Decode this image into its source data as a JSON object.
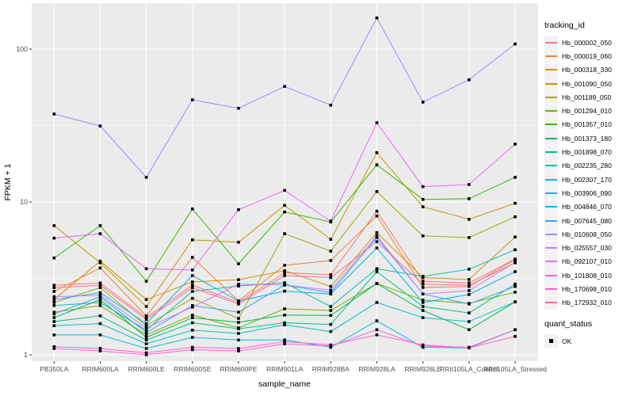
{
  "chart_data": {
    "type": "line",
    "title": "",
    "xlabel": "sample_name",
    "ylabel": "FPKM + 1",
    "y_scale": "log10",
    "ylim": [
      0.91,
      195
    ],
    "yticks": [
      1,
      10,
      100
    ],
    "ytick_labels": [
      "1",
      "10",
      "100"
    ],
    "minor_gridlines": [
      3.162,
      31.62
    ],
    "grid": "on",
    "panel_bg": "#ebebeb",
    "grid_color": "#ffffff",
    "tick_label_color": "#4d4d4d",
    "marker": "black-square",
    "legend_position": "right",
    "legend_title": "tracking_id",
    "legend2_title": "quant_status",
    "legend2_items": [
      "OK"
    ],
    "categories": [
      "PB350LA",
      "RRIM600LA",
      "RRIM600LE",
      "RRIM600SE",
      "RRIM600PE",
      "RRIM901LA",
      "RRIM928BA",
      "RRIM928LA",
      "RRIM928LE",
      "RRII105LA_Control",
      "RRII105LA_Stressed"
    ],
    "series": [
      {
        "name": "Hb_000002_050",
        "color": "#F8766D",
        "values": [
          2.85,
          2.95,
          1.75,
          2.86,
          2.2,
          3.45,
          3.34,
          8.7,
          3.03,
          2.95,
          4.23
        ]
      },
      {
        "name": "Hb_000019_060",
        "color": "#EA8331",
        "values": [
          2.6,
          3.7,
          1.8,
          4.34,
          2.25,
          3.85,
          4.14,
          8.1,
          2.76,
          2.8,
          4.2
        ]
      },
      {
        "name": "Hb_000318_330",
        "color": "#D89000",
        "values": [
          2.3,
          4.1,
          2.3,
          3.0,
          3.1,
          3.55,
          2.8,
          6.3,
          3.2,
          3.11,
          5.9
        ]
      },
      {
        "name": "Hb_001090_050",
        "color": "#C09B00",
        "values": [
          7.0,
          4.0,
          2.07,
          5.65,
          5.45,
          9.5,
          5.7,
          21.0,
          9.3,
          7.7,
          9.8
        ]
      },
      {
        "name": "Hb_001189_050",
        "color": "#A3A500",
        "values": [
          2.2,
          2.75,
          1.55,
          2.34,
          1.73,
          6.2,
          4.77,
          11.7,
          6.0,
          5.85,
          8.0
        ]
      },
      {
        "name": "Hb_001294_010",
        "color": "#7CAE00",
        "values": [
          1.9,
          2.1,
          1.35,
          1.82,
          1.5,
          2.0,
          1.95,
          2.93,
          2.28,
          2.17,
          2.57
        ]
      },
      {
        "name": "Hb_001357_010",
        "color": "#39B600",
        "values": [
          4.3,
          7.0,
          3.03,
          9.0,
          3.94,
          8.6,
          7.4,
          17.5,
          10.4,
          10.5,
          14.5
        ]
      },
      {
        "name": "Hb_001373_180",
        "color": "#00BB4E",
        "values": [
          1.75,
          2.3,
          1.3,
          1.75,
          1.63,
          1.82,
          1.81,
          2.93,
          1.95,
          1.46,
          2.22
        ]
      },
      {
        "name": "Hb_001898_070",
        "color": "#00C087",
        "values": [
          1.65,
          1.8,
          1.25,
          1.62,
          1.48,
          1.62,
          1.58,
          3.5,
          2.07,
          1.88,
          2.9
        ]
      },
      {
        "name": "Hb_002235_280",
        "color": "#00C1AB",
        "values": [
          2.1,
          2.2,
          1.45,
          2.6,
          2.82,
          2.96,
          2.07,
          3.66,
          3.26,
          3.63,
          4.87
        ]
      },
      {
        "name": "Hb_002307_170",
        "color": "#00BFC4",
        "values": [
          1.55,
          1.6,
          1.18,
          1.45,
          1.38,
          1.57,
          1.42,
          2.2,
          1.75,
          1.65,
          2.22
        ]
      },
      {
        "name": "Hb_003906_090",
        "color": "#00BAE0",
        "values": [
          1.35,
          1.35,
          1.1,
          1.3,
          1.25,
          1.25,
          1.12,
          1.67,
          1.12,
          1.11,
          1.46
        ]
      },
      {
        "name": "Hb_004846_070",
        "color": "#00B0F6",
        "values": [
          2.3,
          2.55,
          1.6,
          3.3,
          2.25,
          2.61,
          2.5,
          5.0,
          2.2,
          2.48,
          3.5
        ]
      },
      {
        "name": "Hb_007645_080",
        "color": "#35A2FF",
        "values": [
          1.85,
          2.4,
          1.4,
          2.1,
          1.9,
          2.86,
          2.55,
          5.85,
          2.5,
          2.15,
          2.8
        ]
      },
      {
        "name": "Hb_010608_050",
        "color": "#9590FF",
        "values": [
          37.6,
          31.4,
          14.5,
          46.6,
          41.0,
          57.0,
          43.0,
          160,
          45.0,
          63.0,
          108
        ]
      },
      {
        "name": "Hb_025557_030",
        "color": "#C77CFF",
        "values": [
          2.4,
          2.45,
          1.5,
          2.05,
          2.9,
          2.86,
          2.65,
          6.0,
          2.5,
          2.63,
          4.03
        ]
      },
      {
        "name": "Hb_092107_010",
        "color": "#E76BF3",
        "values": [
          5.8,
          6.2,
          3.66,
          3.59,
          8.9,
          11.9,
          7.5,
          33.0,
          12.6,
          13.0,
          23.9
        ]
      },
      {
        "name": "Hb_101808_010",
        "color": "#FA62DB",
        "values": [
          1.1,
          1.06,
          1.0,
          1.08,
          1.06,
          1.18,
          1.14,
          1.46,
          1.14,
          1.12,
          1.46
        ]
      },
      {
        "name": "Hb_170698_010",
        "color": "#FF61CC",
        "values": [
          1.13,
          1.1,
          1.03,
          1.12,
          1.1,
          1.22,
          1.16,
          1.35,
          1.16,
          1.11,
          1.32
        ]
      },
      {
        "name": "Hb_172932_010",
        "color": "#FF6A98",
        "values": [
          2.75,
          2.85,
          1.7,
          2.75,
          2.15,
          3.3,
          3.2,
          5.5,
          2.9,
          2.85,
          4.0
        ]
      }
    ]
  }
}
